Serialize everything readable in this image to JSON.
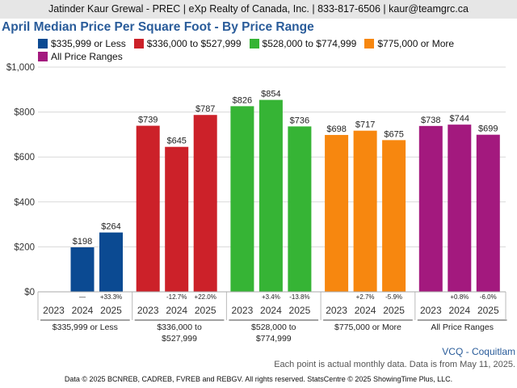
{
  "header": {
    "text": "Jatinder Kaur Grewal - PREC | eXp Realty of Canada, Inc. | 833-817-6506 | kaur@teamgrc.ca"
  },
  "region": "VCQ - Coquitlam",
  "note": "Each point is actual monthly data. Data is from May 11, 2025.",
  "footer": "Data © 2025 BCNREB, CADREB, FVREB and REBGV. All rights reserved. StatsCentre © 2025 ShowingTime Plus, LLC.",
  "chart_data": {
    "type": "bar",
    "title": "April Median Price Per Square Foot - By Price Range",
    "legend_position": "top",
    "grid": true,
    "ylim": [
      0,
      1000
    ],
    "y_ticks": [
      "$0",
      "$200",
      "$400",
      "$600",
      "$800",
      "$1,000"
    ],
    "y_tick_values": [
      0,
      200,
      400,
      600,
      800,
      1000
    ],
    "years": [
      "2023",
      "2024",
      "2025"
    ],
    "groups": [
      {
        "name": "$335,999 or Less",
        "axis_label": [
          "$335,999 or Less"
        ],
        "color": "#0b4a92",
        "values": [
          null,
          198,
          264
        ],
        "labels": [
          "",
          "$198",
          "$264"
        ],
        "changes": [
          "",
          "—",
          "+33.3%"
        ]
      },
      {
        "name": "$336,000 to $527,999",
        "axis_label": [
          "$336,000 to",
          "$527,999"
        ],
        "color": "#cc2129",
        "values": [
          739,
          645,
          787
        ],
        "labels": [
          "$739",
          "$645",
          "$787"
        ],
        "changes": [
          "",
          "-12.7%",
          "+22.0%"
        ]
      },
      {
        "name": "$528,000 to $774,999",
        "axis_label": [
          "$528,000 to",
          "$774,999"
        ],
        "color": "#36b435",
        "values": [
          826,
          854,
          736
        ],
        "labels": [
          "$826",
          "$854",
          "$736"
        ],
        "changes": [
          "",
          "+3.4%",
          "-13.8%"
        ]
      },
      {
        "name": "$775,000 or More",
        "axis_label": [
          "$775,000 or More"
        ],
        "color": "#f7870f",
        "values": [
          698,
          717,
          675
        ],
        "labels": [
          "$698",
          "$717",
          "$675"
        ],
        "changes": [
          "",
          "+2.7%",
          "-5.9%"
        ]
      },
      {
        "name": "All Price Ranges",
        "axis_label": [
          "All Price Ranges"
        ],
        "color": "#a3197e",
        "values": [
          738,
          744,
          699
        ],
        "labels": [
          "$738",
          "$744",
          "$699"
        ],
        "changes": [
          "",
          "+0.8%",
          "-6.0%"
        ]
      }
    ]
  }
}
